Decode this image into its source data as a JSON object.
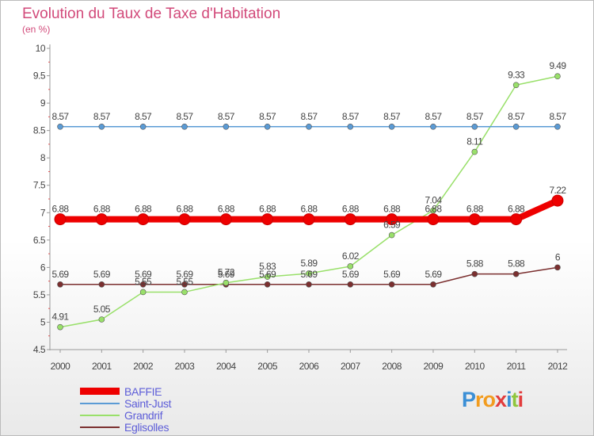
{
  "chart_data": {
    "type": "line",
    "title": "Evolution du Taux de Taxe d'Habitation",
    "ylabel": "(en %)",
    "xlabel": "",
    "ylim": [
      4.5,
      10
    ],
    "yticks": [
      "4.5",
      "5",
      "5.5",
      "6",
      "6.5",
      "7",
      "7.5",
      "8",
      "8.5",
      "9",
      "9.5",
      "10"
    ],
    "categories": [
      "2000",
      "2001",
      "2002",
      "2003",
      "2004",
      "2005",
      "2006",
      "2007",
      "2008",
      "2009",
      "2010",
      "2011",
      "2012"
    ],
    "grid": false,
    "legend_position": "bottom-left",
    "series": [
      {
        "name": "BAFFIE",
        "color": "#ee0000",
        "values": [
          6.88,
          6.88,
          6.88,
          6.88,
          6.88,
          6.88,
          6.88,
          6.88,
          6.88,
          6.88,
          6.88,
          6.88,
          7.22
        ],
        "labels": [
          "6.88",
          "6.88",
          "6.88",
          "6.88",
          "6.88",
          "6.88",
          "6.88",
          "6.88",
          "6.88",
          "6.88",
          "6.88",
          "6.88",
          "7.22"
        ]
      },
      {
        "name": "Saint-Just",
        "color": "#5b9bd5",
        "values": [
          8.57,
          8.57,
          8.57,
          8.57,
          8.57,
          8.57,
          8.57,
          8.57,
          8.57,
          8.57,
          8.57,
          8.57,
          8.57
        ],
        "labels": [
          "8.57",
          "8.57",
          "8.57",
          "8.57",
          "8.57",
          "8.57",
          "8.57",
          "8.57",
          "8.57",
          "8.57",
          "8.57",
          "8.57",
          "8.57"
        ]
      },
      {
        "name": "Grandrif",
        "color": "#99e06a",
        "values": [
          4.91,
          5.05,
          5.55,
          5.55,
          5.72,
          5.83,
          5.89,
          6.02,
          6.59,
          7.04,
          8.11,
          9.33,
          9.49
        ],
        "labels": [
          "4.91",
          "5.05",
          "5.55",
          "5.55",
          "5.72",
          "5.83",
          "5.89",
          "6.02",
          "6.59",
          "7.04",
          "8.11",
          "9.33",
          "9.49"
        ]
      },
      {
        "name": "Eglisolles",
        "color": "#7b2f2f",
        "values": [
          5.69,
          5.69,
          5.69,
          5.69,
          5.69,
          5.69,
          5.69,
          5.69,
          5.69,
          5.69,
          5.88,
          5.88,
          6
        ],
        "labels": [
          "5.69",
          "5.69",
          "5.69",
          "5.69",
          "5.69",
          "5.69",
          "5.69",
          "5.69",
          "5.69",
          "5.69",
          "5.88",
          "5.88",
          "6"
        ]
      }
    ]
  },
  "logo": {
    "text": "Proxiti",
    "letters": [
      "P",
      "r",
      "o",
      "x",
      "i",
      "t",
      "i"
    ],
    "colors": [
      "#3b8fd6",
      "#f29c1f",
      "#f29c1f",
      "#e23c3c",
      "#3b8fd6",
      "#8fc63d",
      "#e23c3c"
    ]
  }
}
